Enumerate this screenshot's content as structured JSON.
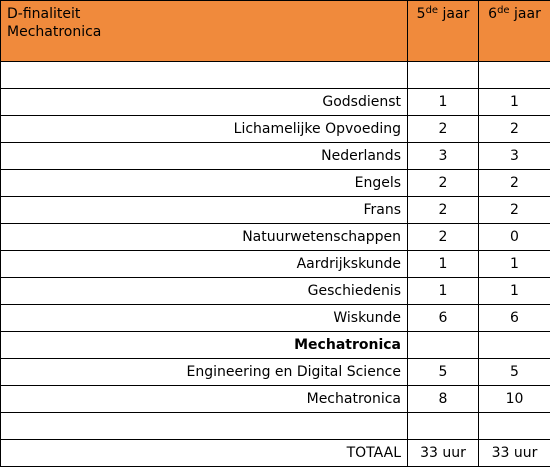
{
  "header": {
    "title_line1": "D-finaliteit",
    "title_line2": "Mechatronica",
    "year5_prefix": "5",
    "year5_sup": "de",
    "year5_suffix": " jaar",
    "year6_prefix": "6",
    "year6_sup": "de",
    "year6_suffix": " jaar"
  },
  "rows": [
    {
      "subject": "Godsdienst",
      "y5": "1",
      "y6": "1"
    },
    {
      "subject": "Lichamelijke Opvoeding",
      "y5": "2",
      "y6": "2"
    },
    {
      "subject": "Nederlands",
      "y5": "3",
      "y6": "3"
    },
    {
      "subject": "Engels",
      "y5": "2",
      "y6": "2"
    },
    {
      "subject": "Frans",
      "y5": "2",
      "y6": "2"
    },
    {
      "subject": "Natuurwetenschappen",
      "y5": "2",
      "y6": "0"
    },
    {
      "subject": "Aardrijkskunde",
      "y5": "1",
      "y6": "1"
    },
    {
      "subject": "Geschiedenis",
      "y5": "1",
      "y6": "1"
    },
    {
      "subject": "Wiskunde",
      "y5": "6",
      "y6": "6"
    },
    {
      "subject": "Mechatronica",
      "y5": "",
      "y6": ""
    },
    {
      "subject": "Engineering en Digital Science",
      "y5": "5",
      "y6": "5"
    },
    {
      "subject": "Mechatronica",
      "y5": "8",
      "y6": "10"
    }
  ],
  "total": {
    "label": "TOTAAL",
    "y5": "33 uur",
    "y6": "33 uur"
  }
}
